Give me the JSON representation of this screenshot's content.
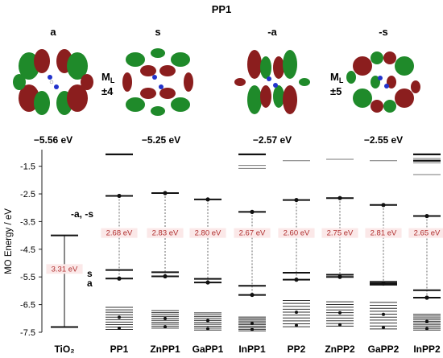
{
  "figure": {
    "title": "PP1",
    "orbitals": [
      {
        "label": "a",
        "energy": "−5.56 eV"
      },
      {
        "label": "s",
        "energy": "−5.25 eV"
      },
      {
        "label": "-a",
        "energy": "−2.57 eV"
      },
      {
        "label": "-s",
        "energy": "−2.55 eV"
      }
    ],
    "ml_left": {
      "label": "M",
      "sub": "L",
      "value": "±4"
    },
    "ml_right": {
      "label": "M",
      "sub": "L",
      "value": "±5"
    },
    "annotations": {
      "upper": "-a, -s",
      "s": "s",
      "a": "a"
    }
  },
  "chart_data": {
    "type": "energy-level diagram",
    "ylabel": "MO Energy / eV",
    "ylim": [
      -7.5,
      -0.9
    ],
    "yticks": [
      "-1.5",
      "-2.5",
      "-3.5",
      "-4.5",
      "-5.5",
      "-6.5",
      "-7.5"
    ],
    "categories": [
      "TiO₂",
      "PP1",
      "ZnPP1",
      "GaPP1",
      "InPP1",
      "PP2",
      "ZnPP2",
      "GaPP2",
      "InPP2"
    ],
    "columns": [
      {
        "name": "TiO₂",
        "gap": "3.31 eV",
        "lumo": -4.0,
        "homo": -7.31,
        "dense_top": -7.31,
        "dense_bottom": -7.31,
        "upper_levels": [],
        "upper_thin": [],
        "mid_levels": []
      },
      {
        "name": "PP1",
        "gap": "2.68 eV",
        "lumo": -2.57,
        "homo": -5.56,
        "upper_levels": [
          -1.07
        ],
        "mid_levels": [
          -5.25
        ],
        "upper_thin": [],
        "dense_top": -6.6,
        "dense_bottom": -7.4
      },
      {
        "name": "ZnPP1",
        "gap": "2.83 eV",
        "lumo": -2.47,
        "homo": -5.48,
        "upper_levels": [],
        "mid_levels": [
          -5.33
        ],
        "upper_thin": [],
        "dense_top": -6.72,
        "dense_bottom": -7.35
      },
      {
        "name": "GaPP1",
        "gap": "2.80 eV",
        "lumo": -2.7,
        "homo": -5.7,
        "upper_levels": [],
        "mid_levels": [
          -5.57
        ],
        "upper_thin": [],
        "dense_top": -6.8,
        "dense_bottom": -7.42
      },
      {
        "name": "InPP1",
        "gap": "2.67 eV",
        "lumo": -3.15,
        "homo": -6.15,
        "upper_levels": [
          -1.07
        ],
        "mid_levels": [
          -5.82
        ],
        "upper_thin": [
          -1.47,
          -1.58
        ],
        "dense_top": -6.95,
        "dense_bottom": -7.45
      },
      {
        "name": "PP2",
        "gap": "2.60 eV",
        "lumo": -2.72,
        "homo": -5.6,
        "upper_levels": [],
        "mid_levels": [
          -5.35
        ],
        "upper_thin": [
          -1.3
        ],
        "dense_top": -6.35,
        "dense_bottom": -7.3
      },
      {
        "name": "ZnPP2",
        "gap": "2.75 eV",
        "lumo": -2.65,
        "homo": -5.5,
        "upper_levels": [],
        "mid_levels": [
          -5.42
        ],
        "upper_thin": [
          -1.25
        ],
        "dense_top": -6.4,
        "dense_bottom": -7.28
      },
      {
        "name": "GaPP2",
        "gap": "2.81 eV",
        "lumo": -2.9,
        "homo": -5.74,
        "upper_levels": [],
        "mid_levels": [
          -5.68,
          -5.78
        ],
        "upper_thin": [
          -1.3
        ],
        "dense_top": -6.42,
        "dense_bottom": -7.38
      },
      {
        "name": "InPP2",
        "gap": "2.65 eV",
        "lumo": -3.3,
        "homo": -6.25,
        "upper_levels": [
          -1.07,
          -1.3
        ],
        "mid_levels": [
          -5.98
        ],
        "upper_thin": [
          -1.22,
          -1.38,
          -1.8
        ],
        "dense_top": -6.85,
        "dense_bottom": -7.42
      }
    ]
  },
  "colors": {
    "lobe_red": "#8b1e1e",
    "lobe_green": "#1f8a2a",
    "gap_text": "#b03030",
    "gap_bg": "#fbe8e8",
    "line": "#111111"
  }
}
